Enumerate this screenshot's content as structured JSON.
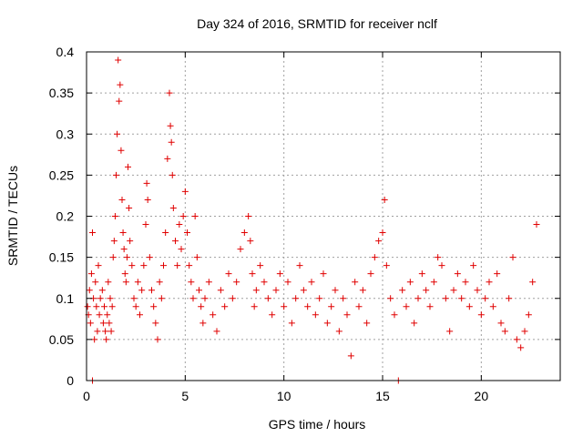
{
  "chart_data": {
    "type": "scatter",
    "title": "Day 324 of 2016, SRMTID for receiver nclf",
    "xlabel": "GPS time / hours",
    "ylabel": "SRMTID / TECUs",
    "xlim": [
      0,
      24
    ],
    "ylim": [
      0,
      0.4
    ],
    "x_ticks": [
      0,
      5,
      10,
      15,
      20
    ],
    "x_tick_labels": [
      "0",
      "5",
      "10",
      "15",
      "20"
    ],
    "y_ticks": [
      0,
      0.05,
      0.1,
      0.15,
      0.2,
      0.25,
      0.3,
      0.35,
      0.4
    ],
    "y_tick_labels": [
      "0",
      "0.05",
      "0.1",
      "0.15",
      "0.2",
      "0.25",
      "0.3",
      "0.35",
      "0.4"
    ],
    "grid": true,
    "marker": "plus",
    "color": "#e00000",
    "series": [
      {
        "points": [
          [
            0.05,
            0.09
          ],
          [
            0.1,
            0.08
          ],
          [
            0.15,
            0.11
          ],
          [
            0.2,
            0.07
          ],
          [
            0.25,
            0.13
          ],
          [
            0.3,
            0.18
          ],
          [
            0.3,
            0.0
          ],
          [
            0.35,
            0.1
          ],
          [
            0.4,
            0.05
          ],
          [
            0.45,
            0.12
          ],
          [
            0.5,
            0.09
          ],
          [
            0.55,
            0.06
          ],
          [
            0.6,
            0.14
          ],
          [
            0.65,
            0.08
          ],
          [
            0.7,
            0.1
          ],
          [
            0.8,
            0.11
          ],
          [
            0.85,
            0.07
          ],
          [
            0.9,
            0.09
          ],
          [
            0.95,
            0.06
          ],
          [
            1.0,
            0.05
          ],
          [
            1.05,
            0.08
          ],
          [
            1.1,
            0.12
          ],
          [
            1.15,
            0.07
          ],
          [
            1.2,
            0.1
          ],
          [
            1.25,
            0.06
          ],
          [
            1.3,
            0.09
          ],
          [
            1.35,
            0.15
          ],
          [
            1.4,
            0.17
          ],
          [
            1.45,
            0.2
          ],
          [
            1.5,
            0.25
          ],
          [
            1.55,
            0.3
          ],
          [
            1.6,
            0.39
          ],
          [
            1.65,
            0.34
          ],
          [
            1.7,
            0.36
          ],
          [
            1.75,
            0.28
          ],
          [
            1.8,
            0.22
          ],
          [
            1.85,
            0.18
          ],
          [
            1.9,
            0.16
          ],
          [
            1.95,
            0.13
          ],
          [
            2.0,
            0.12
          ],
          [
            2.05,
            0.15
          ],
          [
            2.1,
            0.26
          ],
          [
            2.15,
            0.21
          ],
          [
            2.2,
            0.17
          ],
          [
            2.3,
            0.14
          ],
          [
            2.4,
            0.1
          ],
          [
            2.5,
            0.09
          ],
          [
            2.6,
            0.12
          ],
          [
            2.7,
            0.08
          ],
          [
            2.8,
            0.11
          ],
          [
            2.9,
            0.14
          ],
          [
            3.0,
            0.19
          ],
          [
            3.05,
            0.24
          ],
          [
            3.1,
            0.22
          ],
          [
            3.2,
            0.15
          ],
          [
            3.3,
            0.11
          ],
          [
            3.4,
            0.09
          ],
          [
            3.5,
            0.07
          ],
          [
            3.6,
            0.05
          ],
          [
            3.7,
            0.12
          ],
          [
            3.8,
            0.1
          ],
          [
            3.9,
            0.14
          ],
          [
            4.0,
            0.18
          ],
          [
            4.1,
            0.27
          ],
          [
            4.2,
            0.35
          ],
          [
            4.25,
            0.31
          ],
          [
            4.3,
            0.29
          ],
          [
            4.35,
            0.25
          ],
          [
            4.4,
            0.21
          ],
          [
            4.5,
            0.17
          ],
          [
            4.6,
            0.14
          ],
          [
            4.7,
            0.19
          ],
          [
            4.8,
            0.16
          ],
          [
            4.9,
            0.2
          ],
          [
            5.0,
            0.23
          ],
          [
            5.1,
            0.18
          ],
          [
            5.2,
            0.14
          ],
          [
            5.3,
            0.12
          ],
          [
            5.4,
            0.1
          ],
          [
            5.5,
            0.2
          ],
          [
            5.6,
            0.15
          ],
          [
            5.7,
            0.11
          ],
          [
            5.8,
            0.09
          ],
          [
            5.9,
            0.07
          ],
          [
            6.0,
            0.1
          ],
          [
            6.2,
            0.12
          ],
          [
            6.4,
            0.08
          ],
          [
            6.6,
            0.06
          ],
          [
            6.8,
            0.11
          ],
          [
            7.0,
            0.09
          ],
          [
            7.2,
            0.13
          ],
          [
            7.4,
            0.1
          ],
          [
            7.6,
            0.12
          ],
          [
            7.8,
            0.16
          ],
          [
            8.0,
            0.18
          ],
          [
            8.2,
            0.2
          ],
          [
            8.3,
            0.17
          ],
          [
            8.4,
            0.13
          ],
          [
            8.5,
            0.09
          ],
          [
            8.6,
            0.11
          ],
          [
            8.8,
            0.14
          ],
          [
            9.0,
            0.12
          ],
          [
            9.2,
            0.1
          ],
          [
            9.4,
            0.08
          ],
          [
            9.6,
            0.11
          ],
          [
            9.8,
            0.13
          ],
          [
            10.0,
            0.09
          ],
          [
            10.2,
            0.12
          ],
          [
            10.4,
            0.07
          ],
          [
            10.6,
            0.1
          ],
          [
            10.8,
            0.14
          ],
          [
            11.0,
            0.11
          ],
          [
            11.2,
            0.09
          ],
          [
            11.4,
            0.12
          ],
          [
            11.6,
            0.08
          ],
          [
            11.8,
            0.1
          ],
          [
            12.0,
            0.13
          ],
          [
            12.2,
            0.07
          ],
          [
            12.4,
            0.09
          ],
          [
            12.6,
            0.11
          ],
          [
            12.8,
            0.06
          ],
          [
            13.0,
            0.1
          ],
          [
            13.2,
            0.08
          ],
          [
            13.4,
            0.03
          ],
          [
            13.6,
            0.12
          ],
          [
            13.8,
            0.09
          ],
          [
            14.0,
            0.11
          ],
          [
            14.2,
            0.07
          ],
          [
            14.4,
            0.13
          ],
          [
            14.6,
            0.15
          ],
          [
            14.8,
            0.17
          ],
          [
            15.0,
            0.18
          ],
          [
            15.1,
            0.22
          ],
          [
            15.2,
            0.14
          ],
          [
            15.4,
            0.1
          ],
          [
            15.6,
            0.08
          ],
          [
            15.8,
            0.0
          ],
          [
            16.0,
            0.11
          ],
          [
            16.2,
            0.09
          ],
          [
            16.4,
            0.12
          ],
          [
            16.6,
            0.07
          ],
          [
            16.8,
            0.1
          ],
          [
            17.0,
            0.13
          ],
          [
            17.2,
            0.11
          ],
          [
            17.4,
            0.09
          ],
          [
            17.6,
            0.12
          ],
          [
            17.8,
            0.15
          ],
          [
            18.0,
            0.14
          ],
          [
            18.2,
            0.1
          ],
          [
            18.4,
            0.06
          ],
          [
            18.6,
            0.11
          ],
          [
            18.8,
            0.13
          ],
          [
            19.0,
            0.1
          ],
          [
            19.2,
            0.12
          ],
          [
            19.4,
            0.09
          ],
          [
            19.6,
            0.14
          ],
          [
            19.8,
            0.11
          ],
          [
            20.0,
            0.08
          ],
          [
            20.2,
            0.1
          ],
          [
            20.4,
            0.12
          ],
          [
            20.6,
            0.09
          ],
          [
            20.8,
            0.13
          ],
          [
            21.0,
            0.07
          ],
          [
            21.2,
            0.06
          ],
          [
            21.4,
            0.1
          ],
          [
            21.6,
            0.15
          ],
          [
            21.8,
            0.05
          ],
          [
            22.0,
            0.04
          ],
          [
            22.2,
            0.06
          ],
          [
            22.4,
            0.08
          ],
          [
            22.6,
            0.12
          ],
          [
            22.8,
            0.19
          ]
        ]
      }
    ]
  }
}
